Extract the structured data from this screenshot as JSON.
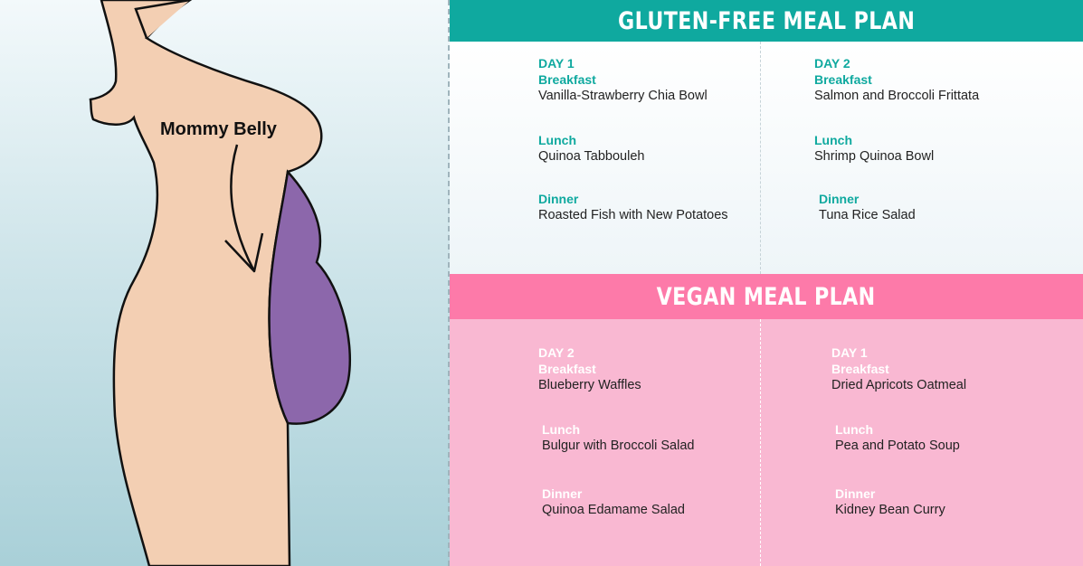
{
  "illustration": {
    "label": "Mommy Belly",
    "colors": {
      "skin": "#f3cfb3",
      "belly": "#8c67ab",
      "outline": "#111111"
    }
  },
  "gluten_free": {
    "title": "GLUTEN-FREE MEAL PLAN",
    "color": "#0fa99f",
    "columns": [
      {
        "day": "DAY 1",
        "breakfast_label": "Breakfast",
        "breakfast": "Vanilla-Strawberry Chia Bowl",
        "lunch_label": "Lunch",
        "lunch": "Quinoa Tabbouleh",
        "dinner_label": "Dinner",
        "dinner": "Roasted Fish with New Potatoes"
      },
      {
        "day": "DAY 2",
        "breakfast_label": "Breakfast",
        "breakfast": "Salmon and Broccoli Frittata",
        "lunch_label": "Lunch",
        "lunch": "Shrimp Quinoa Bowl",
        "dinner_label": "Dinner",
        "dinner": "Tuna Rice Salad"
      }
    ]
  },
  "vegan": {
    "title": "VEGAN MEAL PLAN",
    "color": "#fd7aa9",
    "columns": [
      {
        "day": "DAY 2",
        "breakfast_label": "Breakfast",
        "breakfast": "Blueberry Waffles",
        "lunch_label": "Lunch",
        "lunch": "Bulgur with Broccoli Salad",
        "dinner_label": "Dinner",
        "dinner": "Quinoa Edamame Salad"
      },
      {
        "day": "DAY 1",
        "breakfast_label": "Breakfast",
        "breakfast": "Dried Apricots Oatmeal",
        "lunch_label": "Lunch",
        "lunch": "Pea and Potato Soup",
        "dinner_label": "Dinner",
        "dinner": "Kidney Bean Curry"
      }
    ]
  }
}
